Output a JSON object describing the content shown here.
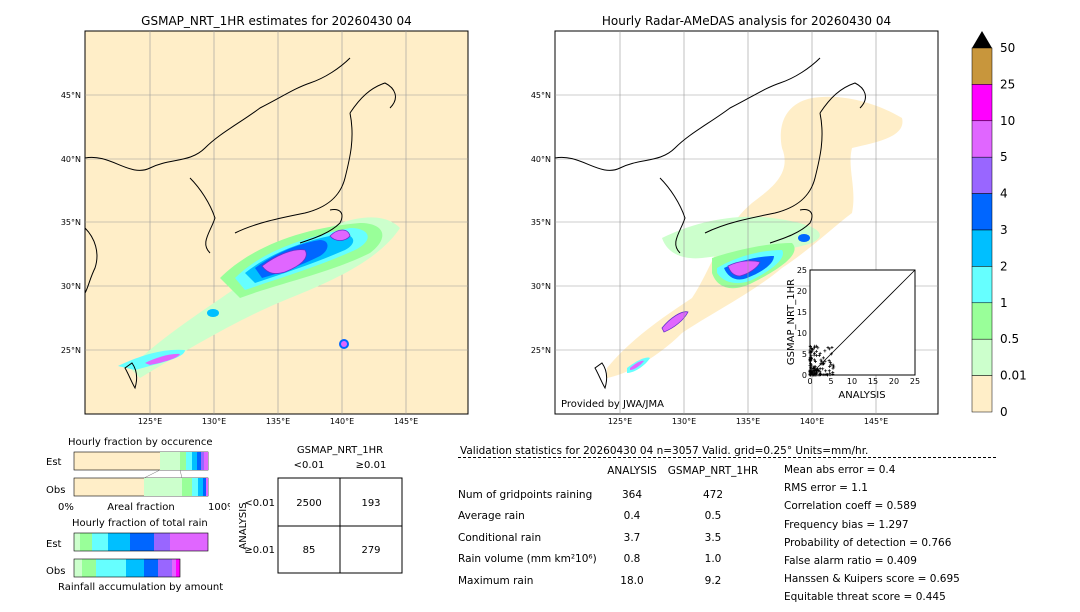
{
  "map_left": {
    "title": "GSMAP_NRT_1HR estimates for 20260430 04",
    "lat_labels": [
      "45°N",
      "40°N",
      "35°N",
      "30°N",
      "25°N"
    ],
    "lon_labels": [
      "125°E",
      "130°E",
      "135°E",
      "140°E",
      "145°E"
    ]
  },
  "map_right": {
    "title": "Hourly Radar-AMeDAS analysis for 20260430 04",
    "lat_labels": [
      "45°N",
      "40°N",
      "35°N",
      "30°N",
      "25°N"
    ],
    "lon_labels": [
      "125°E",
      "130°E",
      "135°E",
      "140°E",
      "145°E"
    ],
    "credit": "Provided by JWA/JMA"
  },
  "colorbar": {
    "labels": [
      "50",
      "25",
      "10",
      "5",
      "4",
      "3",
      "2",
      "1",
      "0.5",
      "0.01",
      "0"
    ],
    "colors": [
      "#c8963c",
      "#ff00ff",
      "#e066ff",
      "#9966ff",
      "#0066ff",
      "#00bfff",
      "#66ffff",
      "#99ff99",
      "#ccffcc",
      "#ffeec8"
    ],
    "over_color": "#000000"
  },
  "scatter": {
    "xlabel": "ANALYSIS",
    "ylabel": "GSMAP_NRT_1HR",
    "ticks": [
      "0",
      "5",
      "10",
      "15",
      "20",
      "25"
    ]
  },
  "occurrence": {
    "title": "Hourly fraction by occurence",
    "est_label": "Est",
    "obs_label": "Obs",
    "axis_left": "0%",
    "axis_mid": "Areal fraction",
    "axis_right": "100%"
  },
  "total_rain": {
    "title": "Hourly fraction of total rain",
    "est_label": "Est",
    "obs_label": "Obs",
    "footer": "Rainfall accumulation by amount"
  },
  "contingency": {
    "title": "GSMAP_NRT_1HR",
    "col_lt": "<0.01",
    "col_ge": "≥0.01",
    "row_label": "ANALYSIS",
    "row_lt": "<0.01",
    "row_ge": "≥0.01",
    "a": "2500",
    "b": "193",
    "c": "85",
    "d": "279"
  },
  "validation": {
    "header": "Validation statistics for 20260430 04  n=3057 Valid. grid=0.25° Units=mm/hr.",
    "col_analysis": "ANALYSIS",
    "col_gsmap": "GSMAP_NRT_1HR",
    "rows": [
      {
        "label": "Num of gridpoints raining",
        "analysis": "364",
        "gsmap": "472"
      },
      {
        "label": "Average rain",
        "analysis": "0.4",
        "gsmap": "0.5"
      },
      {
        "label": "Conditional rain",
        "analysis": "3.7",
        "gsmap": "3.5"
      },
      {
        "label": "Rain volume (mm km²10⁶)",
        "analysis": "0.8",
        "gsmap": "1.0"
      },
      {
        "label": "Maximum rain",
        "analysis": "18.0",
        "gsmap": "9.2"
      }
    ],
    "scores": [
      "Mean abs error =    0.4",
      "RMS error =    1.1",
      "Correlation coeff =  0.589",
      "Frequency bias =  1.297",
      "Probability of detection =  0.766",
      "False alarm ratio =  0.409",
      "Hanssen & Kuipers score =  0.695",
      "Equitable threat score =  0.445"
    ]
  }
}
